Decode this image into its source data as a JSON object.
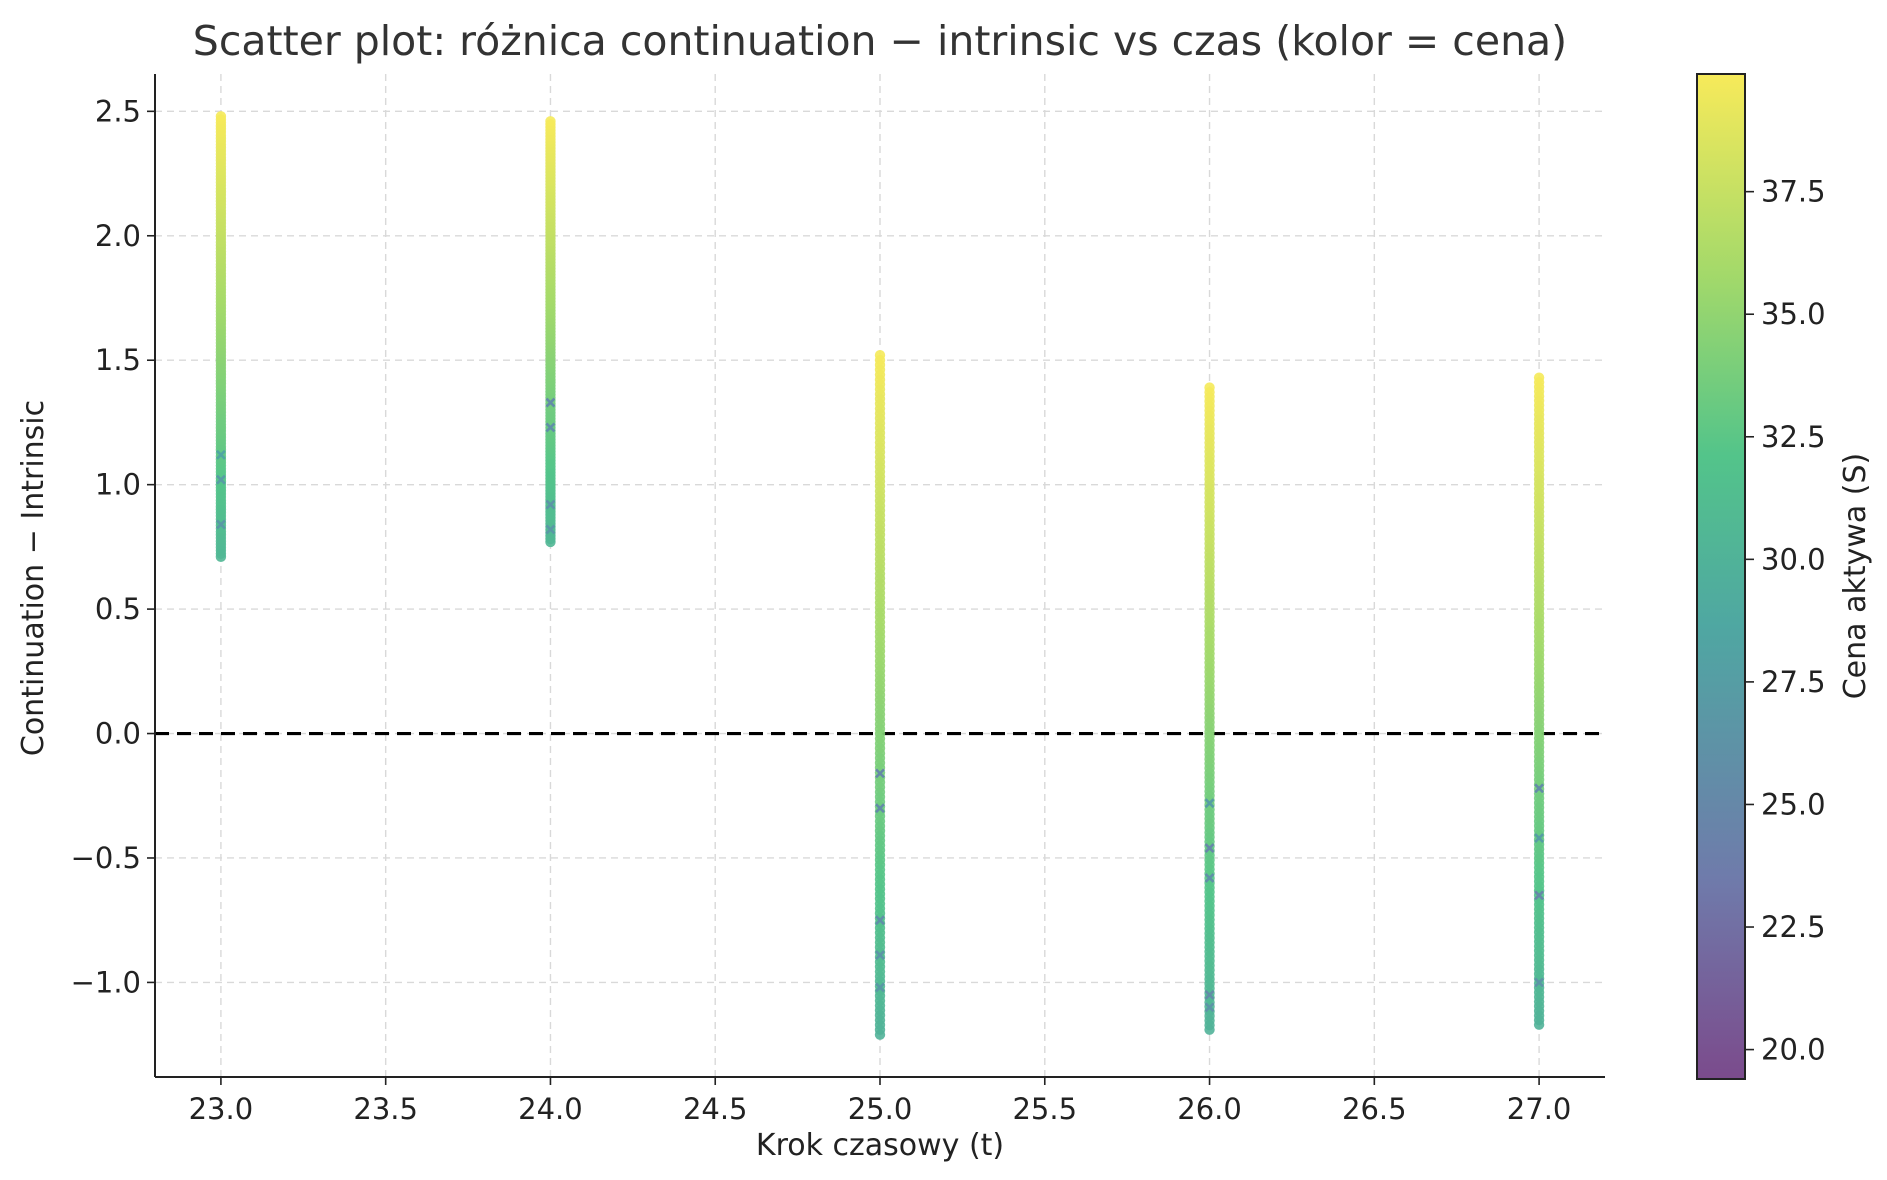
{
  "chart_data": {
    "type": "scatter",
    "title": "Scatter plot: różnica continuation − intrinsic vs czas (kolor = cena)",
    "xlabel": "Krok czasowy (t)",
    "ylabel": "Continuation − Intrinsic",
    "xlim": [
      22.8,
      27.2
    ],
    "ylim": [
      -1.38,
      2.65
    ],
    "x_ticks": [
      "23.0",
      "23.5",
      "24.0",
      "24.5",
      "25.0",
      "25.5",
      "26.0",
      "26.5",
      "27.0"
    ],
    "y_ticks": [
      "−1.0",
      "−0.5",
      "0.0",
      "0.5",
      "1.0",
      "1.5",
      "2.0",
      "2.5"
    ],
    "grid": true,
    "reference_line": {
      "y": 0.0,
      "style": "dashed",
      "color": "#000000"
    },
    "colorbar": {
      "label": "Cena aktywa (S)",
      "range": [
        19.4,
        39.9
      ],
      "ticks": [
        "20.0",
        "22.5",
        "25.0",
        "27.5",
        "30.0",
        "32.5",
        "35.0",
        "37.5"
      ],
      "colormap": "viridis-like",
      "colors": [
        "#7b4b8c",
        "#6f7bab",
        "#4fa7a2",
        "#53c48a",
        "#a3d96a",
        "#f7ea5a"
      ]
    },
    "series": [
      {
        "x": 23,
        "y_min": 0.71,
        "y_max": 2.48,
        "price_min": 30.5,
        "price_max": 39.8,
        "outliers": [
          {
            "y": 0.84,
            "price": 27.0
          },
          {
            "y": 1.02,
            "price": 27.5
          },
          {
            "y": 1.12,
            "price": 28.5
          }
        ]
      },
      {
        "x": 24,
        "y_min": 0.77,
        "y_max": 2.46,
        "price_min": 30.5,
        "price_max": 39.8,
        "outliers": [
          {
            "y": 0.82,
            "price": 27.0
          },
          {
            "y": 0.92,
            "price": 26.5
          },
          {
            "y": 1.23,
            "price": 26.0
          },
          {
            "y": 1.33,
            "price": 25.5
          }
        ]
      },
      {
        "x": 25,
        "y_min": -1.21,
        "y_max": 1.52,
        "price_min": 30.0,
        "price_max": 39.8,
        "outliers": [
          {
            "y": -0.16,
            "price": 25.0
          },
          {
            "y": -0.3,
            "price": 25.5
          },
          {
            "y": -0.75,
            "price": 26.0
          },
          {
            "y": -0.89,
            "price": 26.5
          },
          {
            "y": -1.02,
            "price": 27.0
          }
        ]
      },
      {
        "x": 26,
        "y_min": -1.19,
        "y_max": 1.39,
        "price_min": 30.0,
        "price_max": 39.8,
        "outliers": [
          {
            "y": -0.28,
            "price": 27.5
          },
          {
            "y": -0.46,
            "price": 25.0
          },
          {
            "y": -0.58,
            "price": 26.0
          },
          {
            "y": -1.05,
            "price": 25.5
          },
          {
            "y": -1.1,
            "price": 26.5
          }
        ]
      },
      {
        "x": 27,
        "y_min": -1.17,
        "y_max": 1.43,
        "price_min": 30.0,
        "price_max": 39.8,
        "outliers": [
          {
            "y": -0.22,
            "price": 25.5
          },
          {
            "y": -0.42,
            "price": 27.5
          },
          {
            "y": -0.65,
            "price": 25.0
          },
          {
            "y": -1.0,
            "price": 26.5
          }
        ]
      }
    ]
  }
}
